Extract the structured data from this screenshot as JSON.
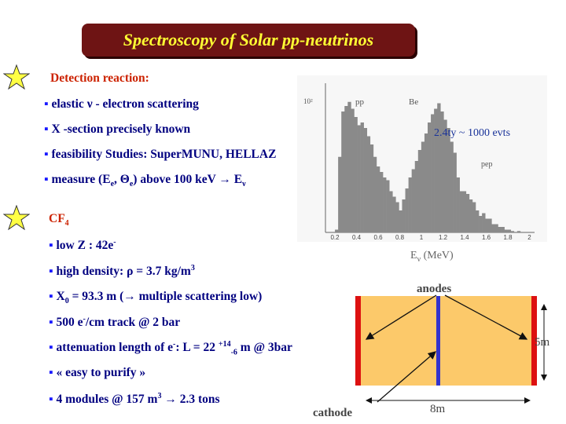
{
  "title": "Spectroscopy of Solar pp-neutrinos",
  "section1": {
    "heading": "Detection reaction:",
    "bullets": [
      {
        "pre": "elastic ",
        "sym": "ν",
        "post": " - electron scattering"
      },
      {
        "text": "X -section precisely known"
      },
      {
        "text": "feasibility Studies: SuperMUNU, HELLAZ"
      },
      {
        "pre": "measure  (E",
        "sub1": "e",
        "mid": ", ",
        "sym": "Θ",
        "sub2": "e",
        "post": ") above 100 keV  ",
        "arrow": "→",
        "end": " E",
        "sub3": "ν"
      }
    ]
  },
  "section2": {
    "heading": "CF",
    "heading_sub": "4",
    "bullets": [
      {
        "pre": "low Z : 42e",
        "sup": "-"
      },
      {
        "pre": "high density:  ",
        "sym": "ρ",
        "post": " = 3.7 kg/m",
        "sup": "3"
      },
      {
        "pre": "X",
        "sub": "0",
        "post": " =  93.3 m (",
        "arrow": "→",
        "end": "  multiple scattering low)"
      },
      {
        "pre": "500 e",
        "sup": "-",
        "post": "/cm track @ 2 bar"
      },
      {
        "pre": "attenuation length of e",
        "sup": "-",
        "post": ": L = 22 ",
        "sup2": "+14",
        "sub2": "-6",
        "end": " m  @ 3bar"
      },
      {
        "text": "« easy to purify »"
      },
      {
        "pre": "4 modules @ 157 m",
        "sup": "3",
        "post": " ",
        "arrow": "→",
        "end": " 2.3 tons"
      }
    ]
  },
  "plot": {
    "y_tick": "10²",
    "peak_labels": [
      "pp",
      "Be",
      "pep"
    ],
    "note": "2.4ty ~ 1000 evts",
    "x_ticks": [
      "0.2",
      "0.4",
      "0.6",
      "0.8",
      "1",
      "1.2",
      "1.4",
      "1.6",
      "1.8",
      "2"
    ],
    "xlabel_main": "E",
    "xlabel_sub": "ν",
    "xlabel_unit": " (MeV)",
    "counts": [
      0,
      2,
      55,
      88,
      92,
      95,
      90,
      84,
      78,
      80,
      76,
      70,
      64,
      55,
      48,
      44,
      40,
      38,
      30,
      26,
      22,
      16,
      24,
      32,
      40,
      46,
      52,
      60,
      66,
      72,
      80,
      86,
      90,
      94,
      88,
      82,
      76,
      66,
      58,
      40,
      30,
      30,
      28,
      24,
      22,
      16,
      12,
      14,
      10,
      10,
      6,
      6,
      4,
      4,
      2,
      2,
      1,
      0,
      1,
      0
    ]
  },
  "detector": {
    "anodes": "anodes",
    "cathode": "cathode",
    "width_label": "8m",
    "height_label": "5m",
    "colors": {
      "fill": "#fcc96a",
      "anode": "#dd1111",
      "cathode": "#3333cc"
    }
  }
}
